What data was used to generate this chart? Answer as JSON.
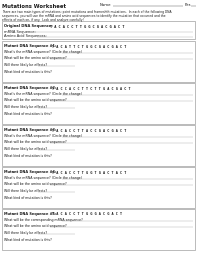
{
  "title": "Mutations Worksheet",
  "name_label": "Name",
  "per_label": "Per.",
  "intro_text1": "There are two main types of mutations: point mutations and frameshift mutations.  In each of the following DNA",
  "intro_text2": "sequences, you will use the mRNA and amino acid sequences to identify the mutation that occurred and the",
  "intro_text3": "effects of each on, if any.  Look and analyze carefully!",
  "orig_label": "Original DNA Sequence:",
  "orig_seq": "T A C A C C T T G G C G A C G A C T",
  "mrna_label": "mRNA Sequence:",
  "aa_label": "Amino Acid Sequences:",
  "mutants": [
    {
      "label": "Mutant DNA Sequence #1:",
      "seq": "T A C A T T C T G G C G A C G A C T",
      "q1": "What's the mRNA sequence? (Circle the change)",
      "q2": "What will be the amino acid sequence?",
      "q3": "Will there likely be effects?",
      "q4": "What kind of mutation is this?"
    },
    {
      "label": "Mutant DNA Sequence #2:",
      "seq": "T A C C A C C T T C T T G A C G A C T",
      "q1": "What's the mRNA sequence? (Circle the change)",
      "q2": "What will be the amino acid sequence?",
      "q3": "Will there likely be effects?",
      "q4": "What kind of mutation is this?"
    },
    {
      "label": "Mutant DNA Sequence #3:",
      "seq": "T A C A C C T T A C C G A C G A C T",
      "q1": "What's the mRNA sequence? (Circle the change)",
      "q2": "What will be the amino acid sequence?",
      "q3": "Will there likely be effects?",
      "q4": "What kind of mutation is this?"
    },
    {
      "label": "Mutant DNA Sequence #4:",
      "seq": "T A C A C C T T G G T G A C T A C T",
      "q1": "What's the mRNA sequence? (Circle the change)",
      "q2": "What will be the amino acid sequence?",
      "q3": "Will there likely be effects?",
      "q4": "What kind of mutation is this?"
    },
    {
      "label": "Mutant DNA Sequence #5:",
      "seq": "T A C A C C T T G G G A C G A C T",
      "q1": "What will be the corresponding mRNA sequence?",
      "q2": "What will be the amino acid sequence?",
      "q3": "Will there likely be effects?",
      "q4": "What kind of mutation is this?"
    }
  ],
  "bg": "#ffffff",
  "fg": "#1a1a1a",
  "box_ec": "#888888",
  "line_c": "#aaaaaa"
}
